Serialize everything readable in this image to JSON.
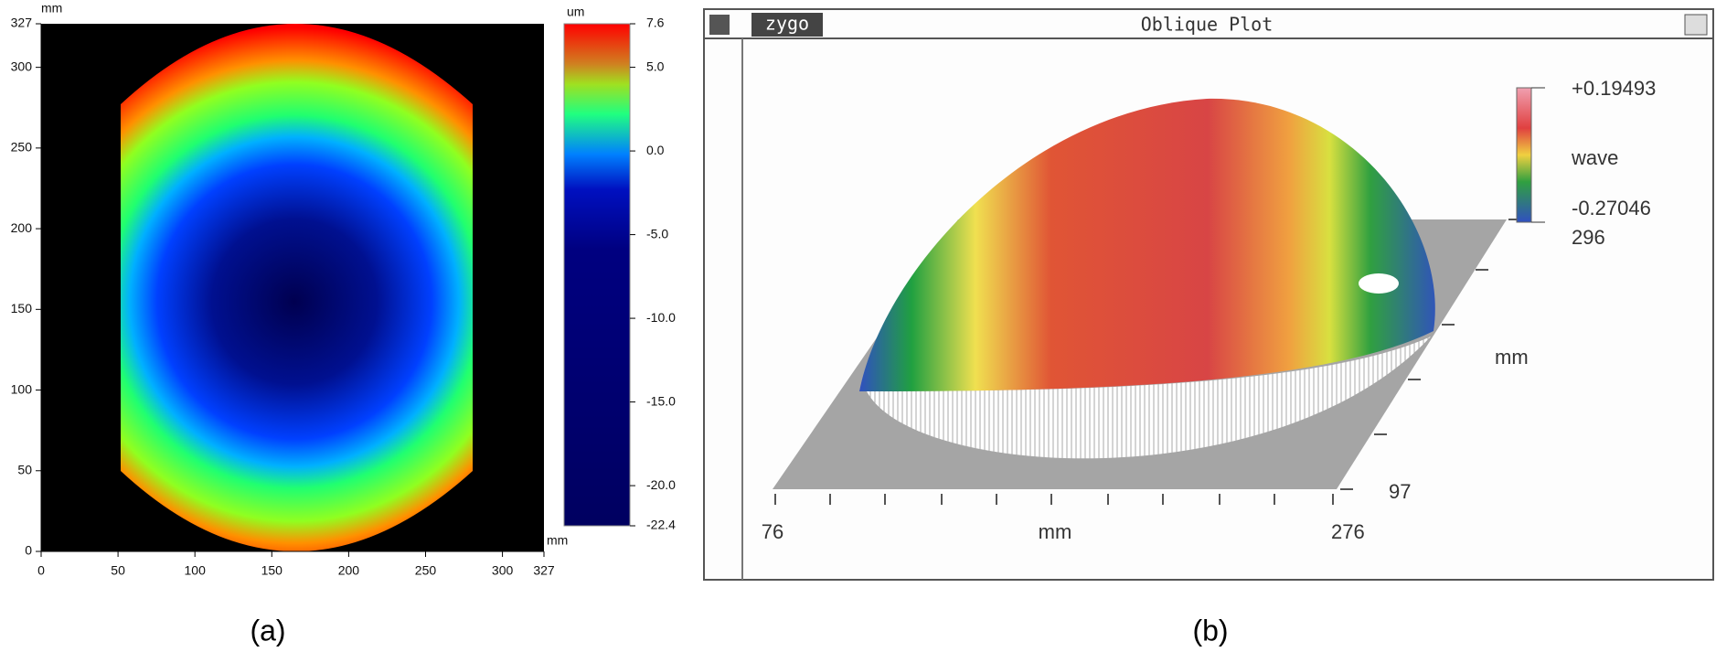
{
  "chart_data": [
    {
      "type": "heatmap",
      "caption": "(a)",
      "xlabel": "mm",
      "ylabel": "mm",
      "xlim": [
        0,
        327
      ],
      "xticks": [
        0,
        50,
        100,
        150,
        200,
        250,
        300,
        327
      ],
      "ylim": [
        0,
        327
      ],
      "yticks": [
        0,
        50,
        100,
        150,
        200,
        250,
        300,
        327
      ],
      "colorbar": {
        "label": "um",
        "lim": [
          -22.4,
          7.6
        ],
        "ticks": [
          7.6,
          {
            "value": 5,
            "label": "5.0"
          },
          {
            "value": 0,
            "label": "0.0"
          },
          {
            "value": -5,
            "label": "-5.0"
          },
          {
            "value": -10,
            "label": "-10.0"
          },
          {
            "value": -15,
            "label": "-15.0"
          },
          {
            "value": -20,
            "label": "-20.0"
          },
          -22.4
        ]
      }
    },
    {
      "type": "surface",
      "caption": "(b)",
      "window_title": "Oblique Plot",
      "logo": "zygo",
      "xlabel": "mm",
      "ylabel": "mm",
      "xticks": [
        76,
        276
      ],
      "yticks": [
        97,
        296
      ],
      "colorbar": {
        "label": "wave",
        "lim": [
          -0.27046,
          0.19493
        ],
        "ticks": [
          {
            "value": 0.19493,
            "label": "+0.19493"
          },
          -0.27046
        ]
      }
    }
  ]
}
